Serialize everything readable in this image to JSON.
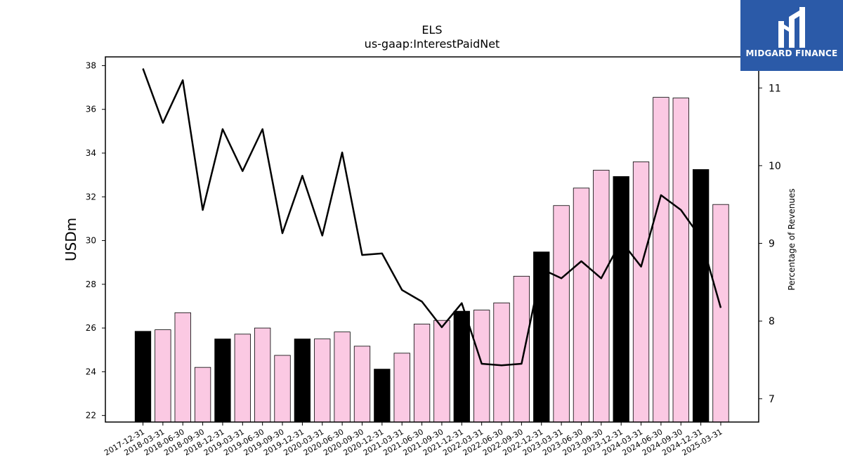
{
  "chart_data": {
    "type": "bar",
    "title": "ELS",
    "subtitle": "us-gaap:InterestPaidNet",
    "ylabel": "USDm",
    "ylabel_right": "Percentage of Revenues",
    "ylim": [
      21.7,
      38.4
    ],
    "ylim_right": [
      6.7,
      11.4
    ],
    "yticks": [
      22,
      24,
      26,
      28,
      30,
      32,
      34,
      36,
      38
    ],
    "yticks_right": [
      7,
      8,
      9,
      10,
      11
    ],
    "grid": false,
    "categories": [
      "2017-12-31",
      "2018-03-31",
      "2018-06-30",
      "2018-09-30",
      "2018-12-31",
      "2019-03-31",
      "2019-06-30",
      "2019-09-30",
      "2019-12-31",
      "2020-03-31",
      "2020-06-30",
      "2020-09-30",
      "2020-12-31",
      "2021-03-31",
      "2021-06-30",
      "2021-09-30",
      "2021-12-31",
      "2022-03-31",
      "2022-06-30",
      "2022-09-30",
      "2022-12-31",
      "2023-03-31",
      "2023-06-30",
      "2023-09-30",
      "2023-12-31",
      "2024-03-31",
      "2024-06-30",
      "2024-09-30",
      "2024-12-31",
      "2025-03-31"
    ],
    "series": [
      {
        "type": "bar",
        "axis": "left",
        "values": [
          25.85,
          25.92,
          26.7,
          24.2,
          25.5,
          25.72,
          26.0,
          24.75,
          25.5,
          25.5,
          25.82,
          25.17,
          24.12,
          24.85,
          26.18,
          26.35,
          26.77,
          26.82,
          27.15,
          28.37,
          29.48,
          31.6,
          32.4,
          33.22,
          32.93,
          33.6,
          36.55,
          36.52,
          33.25,
          31.65
        ],
        "colors_by_index": [
          "#000000",
          "#fbc9e3",
          "#fbc9e3",
          "#fbc9e3",
          "#000000",
          "#fbc9e3",
          "#fbc9e3",
          "#fbc9e3",
          "#000000",
          "#fbc9e3",
          "#fbc9e3",
          "#fbc9e3",
          "#000000",
          "#fbc9e3",
          "#fbc9e3",
          "#fbc9e3",
          "#000000",
          "#fbc9e3",
          "#fbc9e3",
          "#fbc9e3",
          "#000000",
          "#fbc9e3",
          "#fbc9e3",
          "#fbc9e3",
          "#000000",
          "#fbc9e3",
          "#fbc9e3",
          "#fbc9e3",
          "#000000",
          "#fbc9e3"
        ]
      },
      {
        "type": "line",
        "axis": "right",
        "color": "#000000",
        "values": [
          11.25,
          10.55,
          11.1,
          9.43,
          10.47,
          9.93,
          10.47,
          9.13,
          9.87,
          9.1,
          10.17,
          8.85,
          8.87,
          8.4,
          8.25,
          7.92,
          8.23,
          7.45,
          7.43,
          7.45,
          8.67,
          8.55,
          8.77,
          8.55,
          9.03,
          8.7,
          9.62,
          9.43,
          9.07,
          8.17
        ]
      }
    ]
  },
  "logo": {
    "text": "MIDGARD FINANCE"
  }
}
